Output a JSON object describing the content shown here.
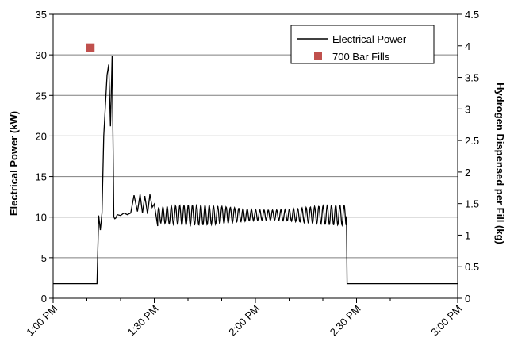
{
  "chart_data": {
    "type": "line",
    "title": "",
    "xlabel": "",
    "ylabel": "Electrical Power (kW)",
    "y2label": "Hydrogen Dispensed per Fill (kg)",
    "xlim": [
      "1:00 PM",
      "3:00 PM"
    ],
    "ylim": [
      0,
      35
    ],
    "y2lim": [
      0,
      4.5
    ],
    "grid": "horizontal",
    "legend_position": "top-right",
    "x_ticks": [
      "1:00 PM",
      "1:30 PM",
      "2:00 PM",
      "2:30 PM",
      "3:00 PM"
    ],
    "y_ticks": [
      "0",
      "5",
      "10",
      "15",
      "20",
      "25",
      "30",
      "35"
    ],
    "y2_ticks": [
      "0",
      "0.5",
      "1",
      "1.5",
      "2",
      "2.5",
      "3",
      "3.5",
      "4",
      "4.5"
    ],
    "series": [
      {
        "name": "Electrical Power",
        "axis": "left",
        "color": "#000000",
        "x": [
          "1:00 PM",
          "1:13 PM",
          "1:13.5 PM",
          "1:14 PM",
          "1:14.5 PM",
          "1:15 PM",
          "1:16 PM",
          "1:16.5 PM",
          "1:17 PM",
          "1:17.5 PM",
          "1:18 PM",
          "1:18.3 PM",
          "1:18.6 PM",
          "1:19 PM",
          "1:20 PM",
          "1:21 PM",
          "1:22 PM",
          "1:23 PM",
          "1:24 PM",
          "1:25 PM",
          "1:25.8 PM",
          "1:26.5 PM",
          "1:27.2 PM",
          "1:28 PM",
          "1:28.7 PM",
          "1:29.4 PM",
          "1:30 PM",
          "1:31 PM",
          "2:27 PM",
          "2:27.2 PM",
          "3:00 PM"
        ],
        "values": [
          1.8,
          1.8,
          10.2,
          8.4,
          10.5,
          20,
          27.5,
          28.8,
          21.2,
          29.9,
          10,
          9.8,
          9.9,
          10.3,
          10.2,
          10.5,
          10.3,
          10.5,
          12.7,
          10.7,
          12.8,
          10.5,
          12.6,
          10.4,
          12.8,
          11.2,
          11.6,
          8.9,
          10.1,
          1.8,
          1.8
        ],
        "oscillation_note_values": [
          9.0,
          11.5
        ]
      },
      {
        "name": "700 Bar Fills",
        "axis": "right",
        "color": "#c0504d",
        "type": "scatter",
        "points": [
          {
            "x": "1:11 PM",
            "y": 3.97
          }
        ]
      }
    ]
  }
}
